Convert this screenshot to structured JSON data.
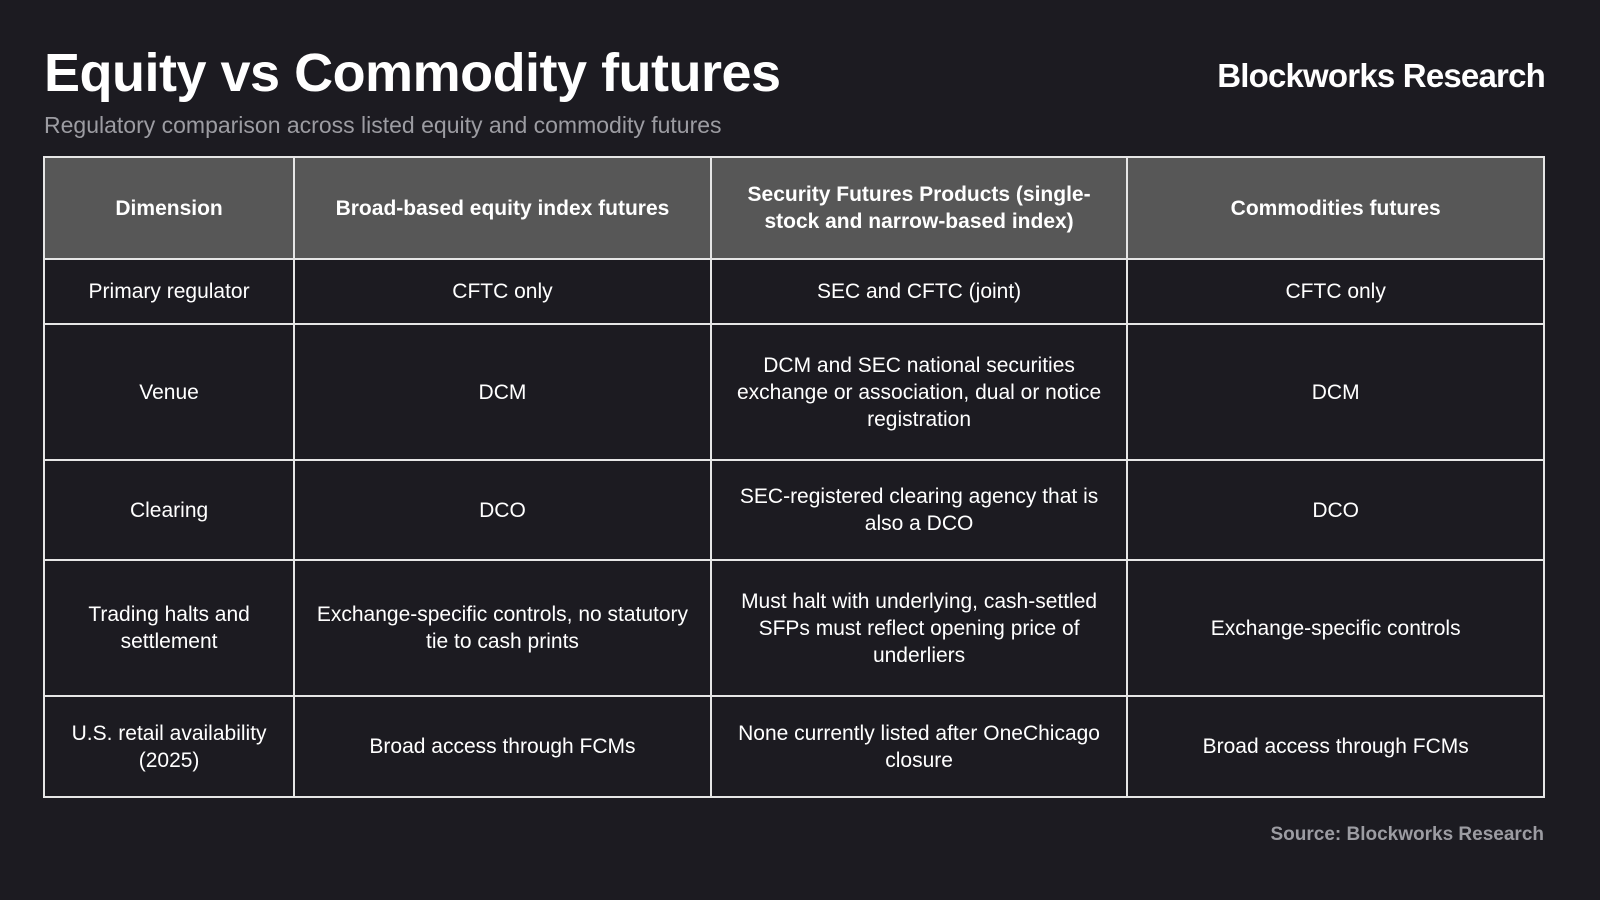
{
  "header": {
    "title": "Equity vs Commodity futures",
    "brand": "Blockworks Research",
    "subtitle": "Regulatory comparison across listed equity and commodity futures"
  },
  "table": {
    "columns": [
      "Dimension",
      "Broad-based equity index futures",
      "Security Futures Products (single-stock and narrow-based index)",
      "Commodities futures"
    ],
    "rows": [
      [
        "Primary regulator",
        "CFTC only",
        "SEC and CFTC (joint)",
        "CFTC only"
      ],
      [
        "Venue",
        "DCM",
        "DCM and SEC national securities exchange or association, dual or notice registration",
        "DCM"
      ],
      [
        "Clearing",
        "DCO",
        "SEC-registered clearing agency that is also a DCO",
        "DCO"
      ],
      [
        "Trading halts and settlement",
        "Exchange-specific controls, no statutory tie to cash prints",
        "Must halt with underlying, cash-settled SFPs must reflect opening price of underliers",
        "Exchange-specific controls"
      ],
      [
        "U.S. retail availability (2025)",
        "Broad access through FCMs",
        "None currently listed after OneChicago closure",
        "Broad access through FCMs"
      ]
    ]
  },
  "footer": {
    "source": "Source: Blockworks Research"
  },
  "colors": {
    "background": "#1c1b21",
    "header_fill": "#575757",
    "muted_text": "#9c9ca2",
    "grid_line": "#e6e6e6"
  }
}
